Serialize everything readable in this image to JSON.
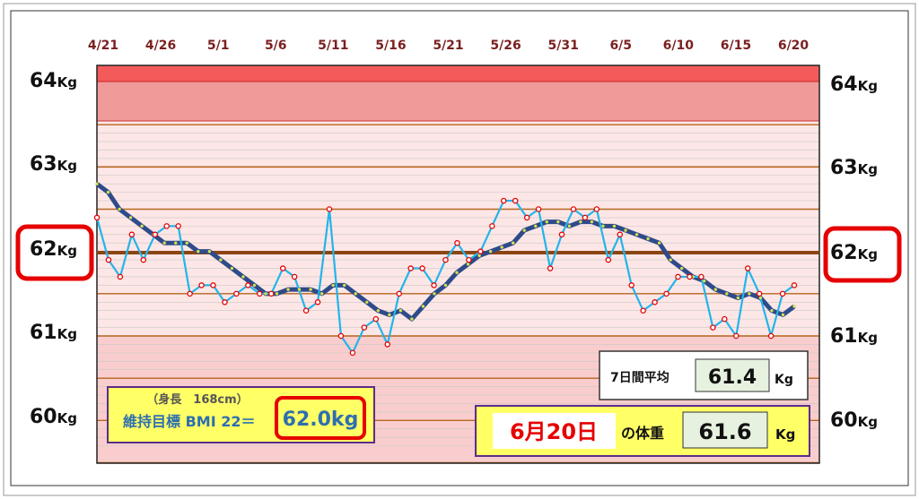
{
  "chart_data": {
    "type": "line",
    "x_tick_labels": [
      "4/21",
      "4/26",
      "5/1",
      "5/6",
      "5/11",
      "5/16",
      "5/21",
      "5/26",
      "5/31",
      "6/5",
      "6/10",
      "6/15",
      "6/20"
    ],
    "y_tick_values": [
      "64",
      "63",
      "62",
      "61",
      "60"
    ],
    "y_unit": "Kg",
    "ylim": [
      59.5,
      64.5
    ],
    "highlight_value": "62",
    "series": [
      {
        "color": "#22b5ea",
        "marker": "red-hollow-circle",
        "values": [
          62.4,
          61.9,
          61.7,
          62.2,
          61.9,
          62.2,
          62.3,
          62.3,
          61.5,
          61.6,
          61.6,
          61.4,
          61.5,
          61.6,
          61.5,
          61.5,
          61.8,
          61.7,
          61.3,
          61.4,
          62.5,
          61.0,
          60.8,
          61.1,
          61.2,
          60.9,
          61.5,
          61.8,
          61.8,
          61.6,
          61.9,
          62.1,
          61.9,
          62.0,
          62.3,
          62.6,
          62.6,
          62.4,
          62.5,
          61.8,
          62.2,
          62.5,
          62.4,
          62.5,
          61.9,
          62.2,
          61.6,
          61.3,
          61.4,
          61.5,
          61.7,
          61.7,
          61.7,
          61.1,
          61.2,
          61.0,
          61.8,
          61.5,
          61.0,
          61.5,
          61.6
        ]
      },
      {
        "color": "#2e4b8a",
        "marker": "yellow-dot",
        "values": [
          62.8,
          62.7,
          62.5,
          62.4,
          62.3,
          62.2,
          62.1,
          62.1,
          62.1,
          62.0,
          62.0,
          61.9,
          61.8,
          61.7,
          61.6,
          61.5,
          61.5,
          61.55,
          61.55,
          61.55,
          61.5,
          61.6,
          61.6,
          61.5,
          61.4,
          61.3,
          61.25,
          61.3,
          61.2,
          61.35,
          61.5,
          61.6,
          61.75,
          61.85,
          61.95,
          62.0,
          62.05,
          62.1,
          62.25,
          62.3,
          62.35,
          62.35,
          62.3,
          62.35,
          62.35,
          62.3,
          62.3,
          62.25,
          62.2,
          62.15,
          62.1,
          61.9,
          61.8,
          61.7,
          61.65,
          61.55,
          61.5,
          61.45,
          61.5,
          61.45,
          61.3,
          61.25,
          61.35
        ]
      }
    ]
  },
  "bmi_box": {
    "height_line": "（身長　168cm）",
    "target_label": "維持目標 BMI 22＝",
    "target_value": "62.0kg"
  },
  "avg_box": {
    "label": "7日間平均",
    "value": "61.4",
    "unit": "Kg"
  },
  "today_box": {
    "date": "6月20日",
    "label": "の体重",
    "value": "61.6",
    "unit": "Kg"
  },
  "colors": {
    "danger_band": "#f19a9a",
    "chart_fill": "#fde6e6",
    "target_line": "#8b4513",
    "raw_line": "#22b5ea",
    "avg_line": "#2e4b8a",
    "box_yellow": "#ffff66",
    "value_green": "#e6f2df",
    "highlight_red": "#e60000"
  }
}
